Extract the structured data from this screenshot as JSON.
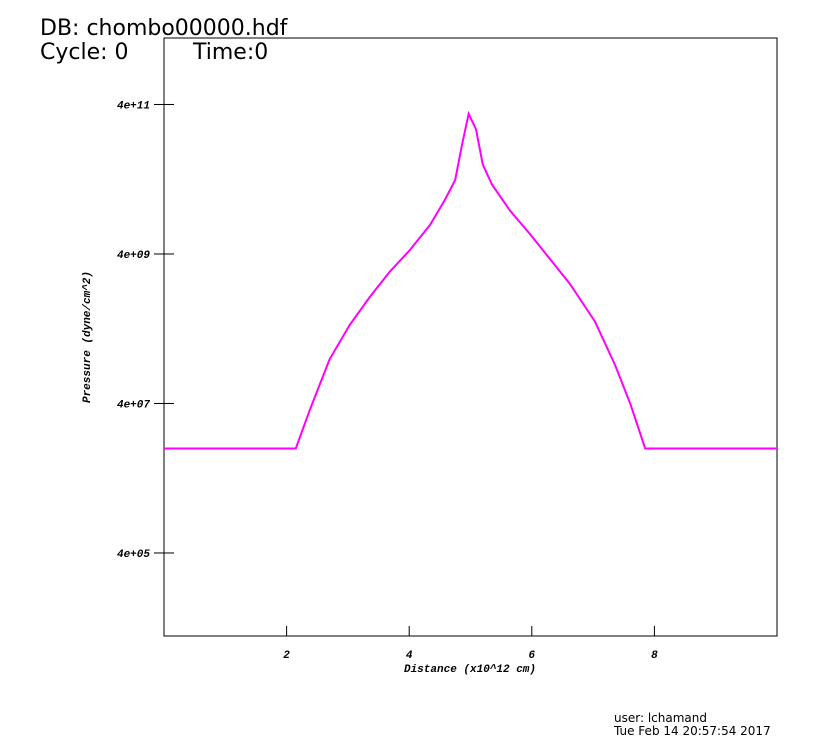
{
  "header": {
    "database": "DB: chombo00000.hdf",
    "cycle": "Cycle: 0",
    "time": "Time:0"
  },
  "chart_data": {
    "type": "line",
    "x_label": "Distance (x10^12 cm)",
    "y_label": "Pressure (dyne/cm^2)",
    "x": [
      0,
      2.15,
      2.38,
      2.7,
      3.03,
      3.36,
      3.68,
      4.01,
      4.34,
      4.58,
      4.75,
      4.86,
      4.97,
      5.09,
      5.2,
      5.35,
      5.65,
      5.97,
      6.3,
      6.62,
      7.03,
      7.36,
      7.61,
      7.85,
      10
    ],
    "values": [
      10000000,
      10000000,
      33000000,
      155000000,
      450000000,
      1070000000,
      2300000000,
      4500000000,
      9800000000,
      21000000000,
      39000000000,
      114000000000,
      300000000000,
      186000000000,
      63000000000,
      34000000000,
      15000000000,
      7400000000,
      3400000000,
      1600000000,
      500000000,
      130000000,
      39000000,
      10000000,
      10000000
    ],
    "color": "#ff00ff",
    "xlim": [
      0,
      10
    ],
    "xticks": [
      2,
      4,
      6,
      8
    ],
    "ylim": [
      31000,
      3100000000000
    ],
    "log_y": true,
    "yticks": [
      {
        "value": 400000,
        "label": "4e+05"
      },
      {
        "value": 40000000,
        "label": "4e+07"
      },
      {
        "value": 4000000000,
        "label": "4e+09"
      },
      {
        "value": 400000000000,
        "label": "4e+11"
      }
    ]
  },
  "footer": {
    "user": "user: lchamand",
    "date": "Tue Feb 14 20:57:54 2017"
  }
}
